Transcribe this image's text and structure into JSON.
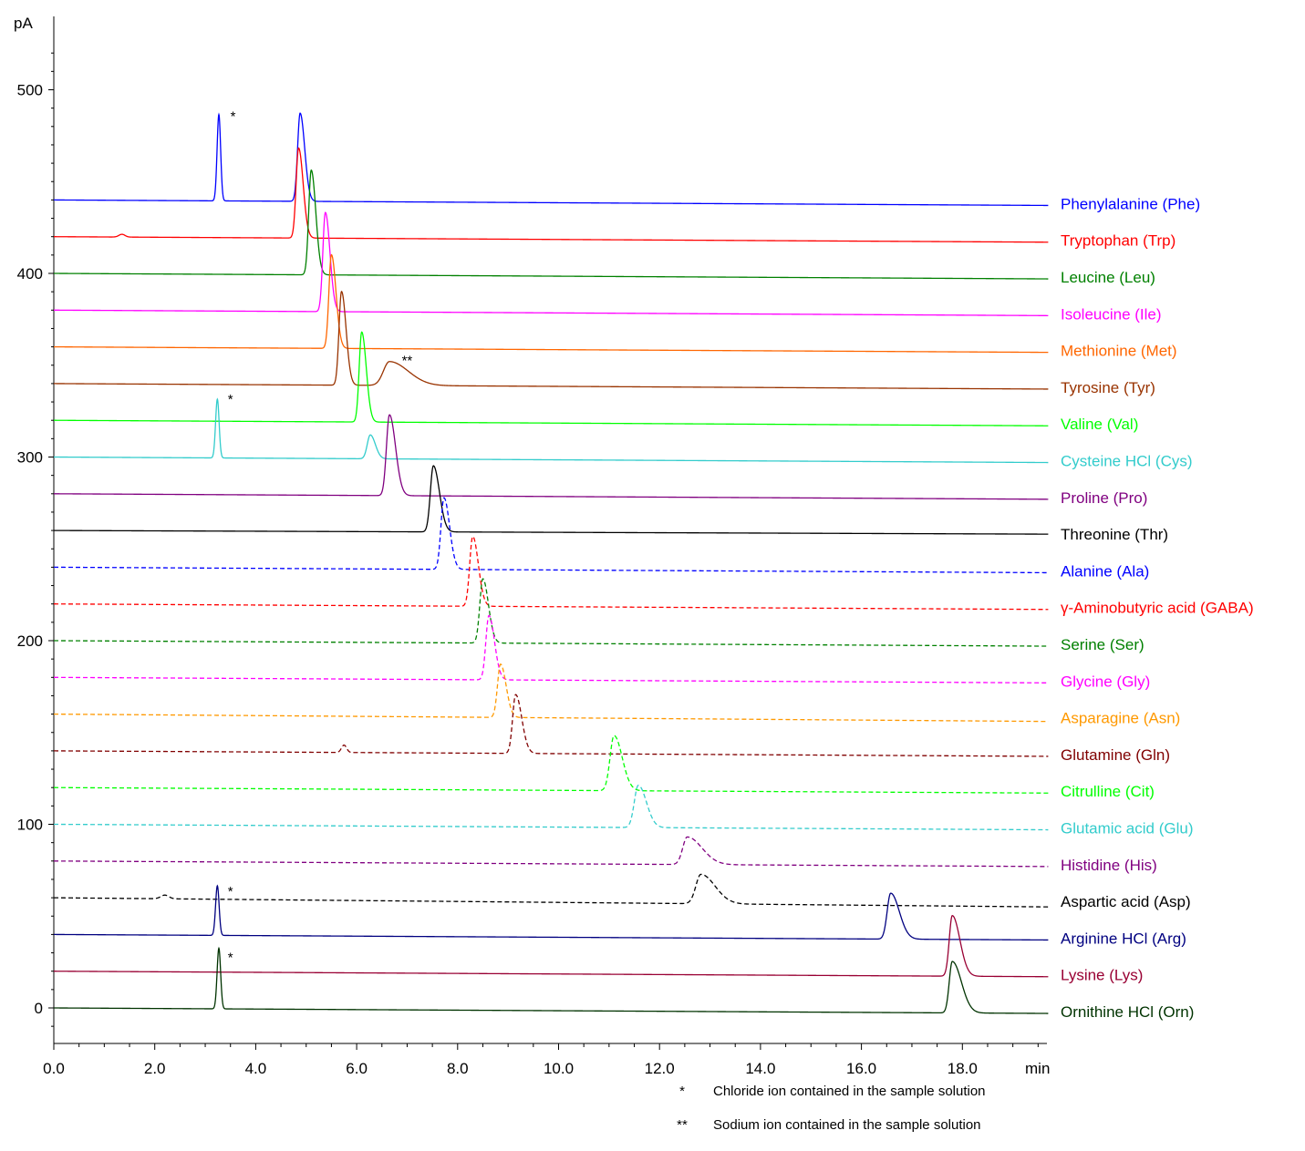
{
  "chart_data": {
    "type": "line",
    "y_unit": "pA",
    "x_unit": "min",
    "xlim": [
      0,
      19.7
    ],
    "ylim": [
      -20,
      530
    ],
    "x_ticks": [
      {
        "value": 0,
        "label": "0.0"
      },
      {
        "value": 2,
        "label": "2.0"
      },
      {
        "value": 4,
        "label": "4.0"
      },
      {
        "value": 6,
        "label": "6.0"
      },
      {
        "value": 8,
        "label": "8.0"
      },
      {
        "value": 10,
        "label": "10.0"
      },
      {
        "value": 12,
        "label": "12.0"
      },
      {
        "value": 14,
        "label": "14.0"
      },
      {
        "value": 16,
        "label": "16.0"
      },
      {
        "value": 18,
        "label": "18.0"
      }
    ],
    "y_ticks": [
      {
        "value": 0,
        "label": "0"
      },
      {
        "value": 100,
        "label": "100"
      },
      {
        "value": 200,
        "label": "200"
      },
      {
        "value": 300,
        "label": "300"
      },
      {
        "value": 400,
        "label": "400"
      },
      {
        "value": 500,
        "label": "500"
      }
    ],
    "grid": false,
    "legend": "right-of-traces",
    "series": [
      {
        "name": "Phenylalanine (Phe)",
        "color": "#0000ff",
        "dash": false,
        "baseline": 440,
        "end": 437,
        "peaks": [
          {
            "t": 3.27,
            "h": 47,
            "w": 0.035,
            "tail": 0
          },
          {
            "t": 4.88,
            "h": 48,
            "w": 0.05,
            "tail": 0.04
          }
        ]
      },
      {
        "name": "Tryptophan (Trp)",
        "color": "#ff0000",
        "dash": false,
        "baseline": 420,
        "end": 417,
        "peaks": [
          {
            "t": 1.35,
            "h": 1.5,
            "w": 0.06,
            "tail": 0
          },
          {
            "t": 4.85,
            "h": 49,
            "w": 0.05,
            "tail": 0.04
          }
        ]
      },
      {
        "name": "Leucine (Leu)",
        "color": "#008000",
        "dash": false,
        "baseline": 400,
        "end": 397,
        "peaks": [
          {
            "t": 5.1,
            "h": 57,
            "w": 0.05,
            "tail": 0.04
          }
        ]
      },
      {
        "name": "Isoleucine (Ile)",
        "color": "#ff00ff",
        "dash": false,
        "baseline": 380,
        "end": 377,
        "peaks": [
          {
            "t": 5.38,
            "h": 54,
            "w": 0.05,
            "tail": 0.04
          }
        ]
      },
      {
        "name": "Methionine (Met)",
        "color": "#ff6600",
        "dash": false,
        "baseline": 360,
        "end": 357,
        "peaks": [
          {
            "t": 5.5,
            "h": 51,
            "w": 0.05,
            "tail": 0.04
          }
        ]
      },
      {
        "name": "Tyrosine (Tyr)",
        "color": "#993300",
        "dash": false,
        "baseline": 340,
        "end": 337,
        "peaks": [
          {
            "t": 5.7,
            "h": 51,
            "w": 0.05,
            "tail": 0.04
          },
          {
            "t": 6.65,
            "h": 13,
            "w": 0.12,
            "tail": 0.25
          }
        ]
      },
      {
        "name": "Valine (Val)",
        "color": "#00ff00",
        "dash": false,
        "baseline": 320,
        "end": 317,
        "peaks": [
          {
            "t": 6.1,
            "h": 49,
            "w": 0.05,
            "tail": 0.04
          }
        ]
      },
      {
        "name": "Cysteine HCl (Cys)",
        "color": "#33cccc",
        "dash": false,
        "baseline": 300,
        "end": 297,
        "peaks": [
          {
            "t": 3.24,
            "h": 32,
            "w": 0.035,
            "tail": 0
          },
          {
            "t": 6.27,
            "h": 13,
            "w": 0.06,
            "tail": 0.04
          }
        ]
      },
      {
        "name": "Proline (Pro)",
        "color": "#800080",
        "dash": false,
        "baseline": 280,
        "end": 277,
        "peaks": [
          {
            "t": 6.65,
            "h": 44,
            "w": 0.06,
            "tail": 0.06
          }
        ]
      },
      {
        "name": "Threonine (Thr)",
        "color": "#000000",
        "dash": false,
        "baseline": 260,
        "end": 258,
        "peaks": [
          {
            "t": 7.52,
            "h": 36,
            "w": 0.06,
            "tail": 0.06
          }
        ]
      },
      {
        "name": "Alanine (Ala)",
        "color": "#0000ff",
        "dash": true,
        "baseline": 240,
        "end": 237,
        "peaks": [
          {
            "t": 7.73,
            "h": 39,
            "w": 0.06,
            "tail": 0.05
          }
        ]
      },
      {
        "name": "γ-Aminobutyric acid (GABA)",
        "color": "#ff0000",
        "dash": true,
        "baseline": 220,
        "end": 217,
        "peaks": [
          {
            "t": 8.3,
            "h": 38,
            "w": 0.06,
            "tail": 0.05
          }
        ]
      },
      {
        "name": "Serine (Ser)",
        "color": "#008000",
        "dash": true,
        "baseline": 200,
        "end": 197,
        "peaks": [
          {
            "t": 8.5,
            "h": 35,
            "w": 0.06,
            "tail": 0.05
          }
        ]
      },
      {
        "name": "Glycine (Gly)",
        "color": "#ff00ff",
        "dash": true,
        "baseline": 180,
        "end": 177,
        "peaks": [
          {
            "t": 8.62,
            "h": 35,
            "w": 0.06,
            "tail": 0.05
          }
        ]
      },
      {
        "name": "Asparagine (Asn)",
        "color": "#ff9900",
        "dash": true,
        "baseline": 160,
        "end": 156,
        "peaks": [
          {
            "t": 8.85,
            "h": 29,
            "w": 0.06,
            "tail": 0.05
          }
        ]
      },
      {
        "name": "Glutamine (Gln)",
        "color": "#800000",
        "dash": true,
        "baseline": 140,
        "end": 137,
        "peaks": [
          {
            "t": 5.75,
            "h": 4,
            "w": 0.05,
            "tail": 0
          },
          {
            "t": 9.15,
            "h": 32,
            "w": 0.06,
            "tail": 0.06
          }
        ]
      },
      {
        "name": "Citrulline (Cit)",
        "color": "#00ff00",
        "dash": true,
        "baseline": 120,
        "end": 117,
        "peaks": [
          {
            "t": 11.1,
            "h": 30,
            "w": 0.08,
            "tail": 0.08
          }
        ]
      },
      {
        "name": "Glutamic acid (Glu)",
        "color": "#33cccc",
        "dash": true,
        "baseline": 100,
        "end": 97,
        "peaks": [
          {
            "t": 11.58,
            "h": 23,
            "w": 0.08,
            "tail": 0.08
          }
        ]
      },
      {
        "name": "Histidine (His)",
        "color": "#800080",
        "dash": true,
        "baseline": 80,
        "end": 77,
        "peaks": [
          {
            "t": 12.55,
            "h": 15,
            "w": 0.09,
            "tail": 0.2
          }
        ]
      },
      {
        "name": "Aspartic acid (Asp)",
        "color": "#000000",
        "dash": true,
        "baseline": 60,
        "end": 55,
        "peaks": [
          {
            "t": 2.2,
            "h": 2,
            "w": 0.08,
            "tail": 0
          },
          {
            "t": 12.82,
            "h": 16,
            "w": 0.1,
            "tail": 0.18
          }
        ]
      },
      {
        "name": "Arginine HCl (Arg)",
        "color": "#000080",
        "dash": false,
        "baseline": 40,
        "end": 37,
        "peaks": [
          {
            "t": 3.24,
            "h": 27,
            "w": 0.035,
            "tail": 0
          },
          {
            "t": 16.58,
            "h": 25,
            "w": 0.07,
            "tail": 0.1
          }
        ]
      },
      {
        "name": "Lysine (Lys)",
        "color": "#990033",
        "dash": false,
        "baseline": 20,
        "end": 17,
        "peaks": [
          {
            "t": 17.8,
            "h": 33,
            "w": 0.06,
            "tail": 0.09
          }
        ]
      },
      {
        "name": "Ornithine HCl (Orn)",
        "color": "#003300",
        "dash": false,
        "baseline": 0,
        "end": -3,
        "peaks": [
          {
            "t": 3.27,
            "h": 33,
            "w": 0.035,
            "tail": 0
          },
          {
            "t": 17.8,
            "h": 28,
            "w": 0.06,
            "tail": 0.12
          }
        ]
      }
    ],
    "annotations": [
      {
        "text": "*",
        "x": 3.55,
        "y": 488
      },
      {
        "text": "**",
        "x": 7.0,
        "y": 355
      },
      {
        "text": "*",
        "x": 3.5,
        "y": 334
      },
      {
        "text": "*",
        "x": 3.5,
        "y": 66
      },
      {
        "text": "*",
        "x": 3.5,
        "y": 30
      }
    ]
  },
  "notes": [
    {
      "symbol": "*",
      "text": "Chloride ion contained in the sample solution"
    },
    {
      "symbol": "**",
      "text": "Sodium ion contained in the sample solution"
    }
  ]
}
